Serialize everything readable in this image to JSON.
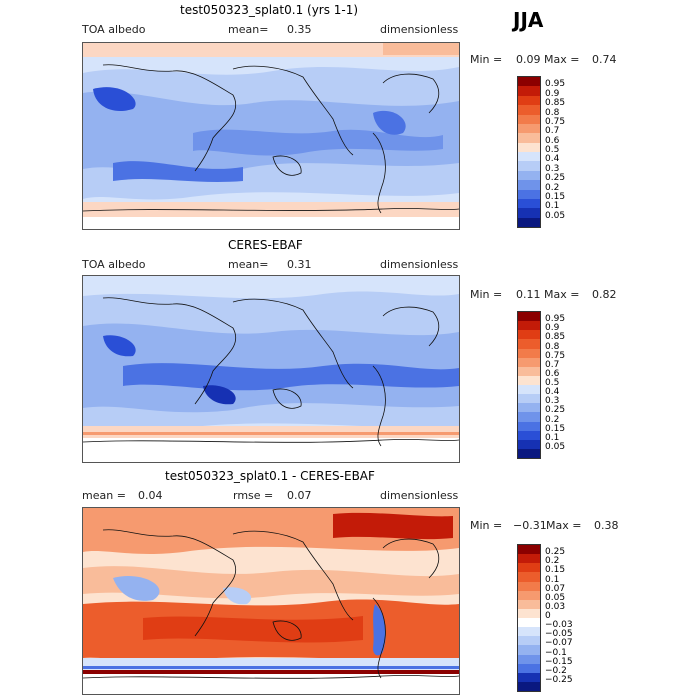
{
  "season": "JJA",
  "panels": [
    {
      "title": "test050323_splat0.1 (yrs 1-1)",
      "left_label": "TOA albedo",
      "mid_label": "mean=",
      "mid_value": "0.35",
      "right_label": "dimensionless",
      "min_label": "Min =",
      "min_value": "0.09",
      "max_label": "Max =",
      "max_value": "0.74",
      "colorbar": {
        "labels": [
          "0.95",
          "0.9",
          "0.85",
          "0.8",
          "0.75",
          "0.7",
          "0.6",
          "0.5",
          "0.4",
          "0.3",
          "0.25",
          "0.2",
          "0.15",
          "0.1",
          "0.05"
        ],
        "colors": [
          "#8b0000",
          "#c31b08",
          "#e03d14",
          "#ec5d2c",
          "#f27b4a",
          "#f69a6f",
          "#f9bc9a",
          "#fde3d0",
          "#d6e4fb",
          "#b7cdf6",
          "#94b2f0",
          "#6f93ea",
          "#4b72e3",
          "#2a4fd6",
          "#1631b3",
          "#0a1880"
        ]
      }
    },
    {
      "title": "CERES-EBAF",
      "left_label": "TOA albedo",
      "mid_label": "mean=",
      "mid_value": "0.31",
      "right_label": "dimensionless",
      "min_label": "Min =",
      "min_value": "0.11",
      "max_label": "Max =",
      "max_value": "0.82",
      "colorbar": {
        "labels": [
          "0.95",
          "0.9",
          "0.85",
          "0.8",
          "0.75",
          "0.7",
          "0.6",
          "0.5",
          "0.4",
          "0.3",
          "0.25",
          "0.2",
          "0.15",
          "0.1",
          "0.05"
        ],
        "colors": [
          "#8b0000",
          "#c31b08",
          "#e03d14",
          "#ec5d2c",
          "#f27b4a",
          "#f69a6f",
          "#f9bc9a",
          "#fde3d0",
          "#d6e4fb",
          "#b7cdf6",
          "#94b2f0",
          "#6f93ea",
          "#4b72e3",
          "#2a4fd6",
          "#1631b3",
          "#0a1880"
        ]
      }
    },
    {
      "title": "test050323_splat0.1 - CERES-EBAF",
      "left_label": "mean =",
      "left_value": "0.04",
      "mid_label": "rmse =",
      "mid_value": "0.07",
      "right_label": "dimensionless",
      "min_label": "Min =",
      "min_value": "−0.31",
      "max_label": "Max =",
      "max_value": "0.38",
      "colorbar": {
        "labels": [
          "0.25",
          "0.2",
          "0.15",
          "0.1",
          "0.07",
          "0.05",
          "0.03",
          "0",
          "−0.03",
          "−0.05",
          "−0.07",
          "−0.1",
          "−0.15",
          "−0.2",
          "−0.25"
        ],
        "colors": [
          "#8b0000",
          "#c31b08",
          "#e03d14",
          "#ec5d2c",
          "#f27b4a",
          "#f69a6f",
          "#f9bc9a",
          "#fde3d0",
          "#ffffff",
          "#d6e4fb",
          "#b7cdf6",
          "#94b2f0",
          "#6f93ea",
          "#4b72e3",
          "#1631b3",
          "#0a1880"
        ]
      }
    }
  ]
}
